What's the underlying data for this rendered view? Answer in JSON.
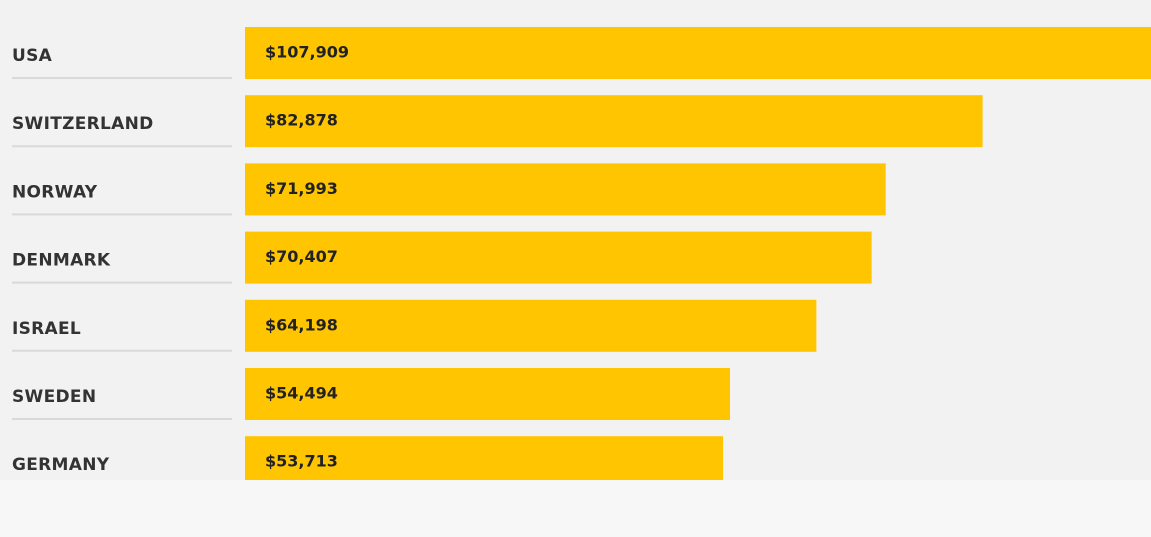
{
  "chart_data": {
    "type": "bar",
    "categories": [
      "USA",
      "SWITZERLAND",
      "NORWAY",
      "DENMARK",
      "ISRAEL",
      "SWEDEN",
      "GERMANY"
    ],
    "values": [
      107909,
      82878,
      71993,
      70407,
      64198,
      54494,
      53713
    ],
    "value_labels": [
      "$107,909",
      "$82,878",
      "$71,993",
      "$70,407",
      "$64,198",
      "$54,494",
      "$53,713"
    ],
    "color": "#ffc500"
  }
}
